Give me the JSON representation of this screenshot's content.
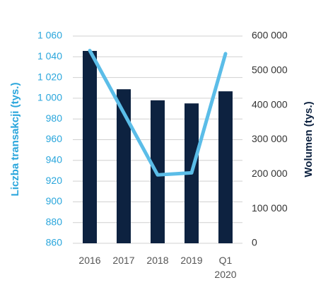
{
  "chart_data": {
    "type": "bar-line",
    "categories": [
      "2016",
      "2017",
      "2018",
      "2019",
      "Q1 2020"
    ],
    "y_label": "Liczba transakcji (tys.)",
    "y2_label": "Wolumen (tys.)",
    "series": [
      {
        "name": "Wolumen (tys.)",
        "type": "bar",
        "axis": "y2",
        "color": "#0d2240",
        "values": [
          557000,
          446000,
          414000,
          405000,
          440000
        ]
      },
      {
        "name": "Liczba transakcji (tys.)",
        "type": "line",
        "axis": "y",
        "color": "#5bbde8",
        "values": [
          1046,
          986,
          926,
          928,
          1043
        ]
      }
    ],
    "ylim": [
      860,
      1060
    ],
    "yticks": [
      860,
      880,
      900,
      920,
      940,
      960,
      980,
      {
        "value": 1000,
        "label": "1 000"
      },
      {
        "value": 1020,
        "label": "1 020"
      },
      {
        "value": 1040,
        "label": "1 040"
      },
      {
        "value": 1060,
        "label": "1 060"
      }
    ],
    "y2lim": [
      0,
      600000
    ],
    "y2ticks": [
      0,
      {
        "value": 100000,
        "label": "100 000"
      },
      {
        "value": 200000,
        "label": "200 000"
      },
      {
        "value": 300000,
        "label": "300 000"
      },
      {
        "value": 400000,
        "label": "400 000"
      },
      {
        "value": 500000,
        "label": "500 000"
      },
      {
        "value": 600000,
        "label": "600 000"
      }
    ],
    "grid": true
  }
}
